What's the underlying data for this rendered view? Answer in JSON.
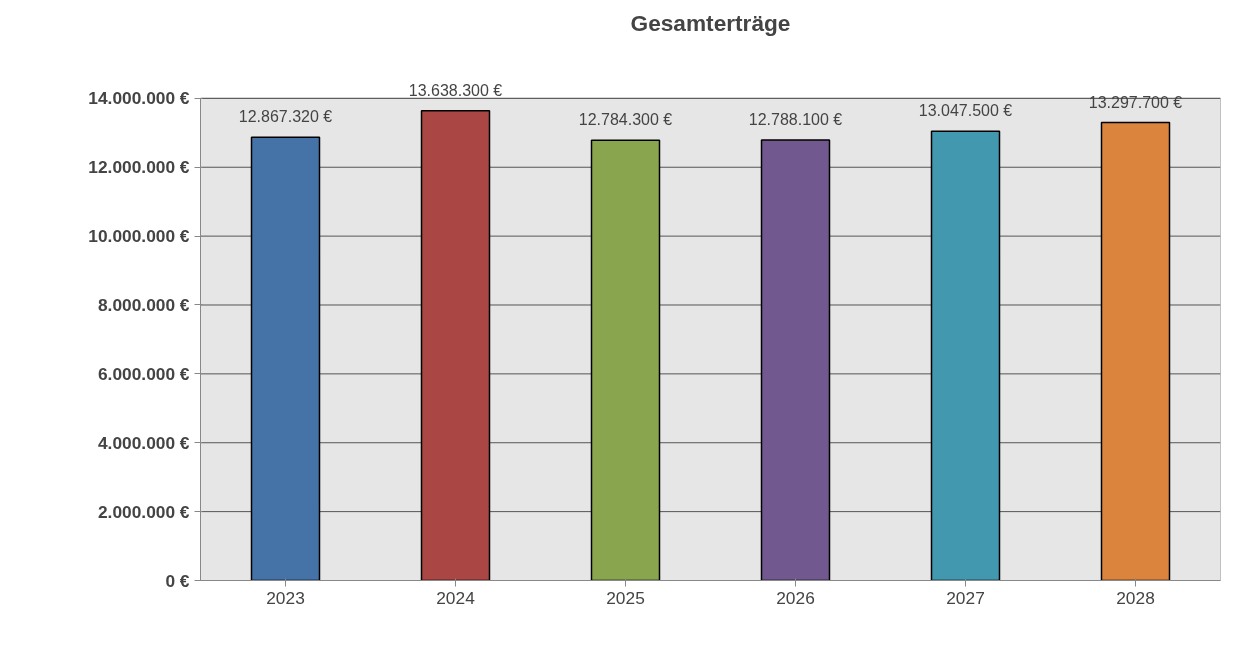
{
  "chart_data": {
    "type": "bar",
    "title": "Gesamterträge",
    "categories": [
      "2023",
      "2024",
      "2025",
      "2026",
      "2027",
      "2028"
    ],
    "values": [
      12867320,
      13638300,
      12784300,
      12788100,
      13047500,
      13297700
    ],
    "colors": [
      "#4572a7",
      "#aa4643",
      "#89a54e",
      "#71588f",
      "#4198af",
      "#db843d"
    ],
    "value_labels": [
      "12.867.320 €",
      "13.638.300 €",
      "12.784.300 €",
      "12.788.100 €",
      "13.047.500 €",
      "13.297.700 €"
    ],
    "ylim": [
      0,
      14000000
    ],
    "yticks": [
      {
        "value": 0,
        "label": "0 €"
      },
      {
        "value": 2000000,
        "label": "2.000.000 €"
      },
      {
        "value": 4000000,
        "label": "4.000.000 €"
      },
      {
        "value": 6000000,
        "label": "6.000.000 €"
      },
      {
        "value": 8000000,
        "label": "8.000.000 €"
      },
      {
        "value": 10000000,
        "label": "10.000.000 €"
      },
      {
        "value": 12000000,
        "label": "12.000.000 €"
      },
      {
        "value": 14000000,
        "label": "14.000.000 €"
      }
    ],
    "grid": "y"
  }
}
